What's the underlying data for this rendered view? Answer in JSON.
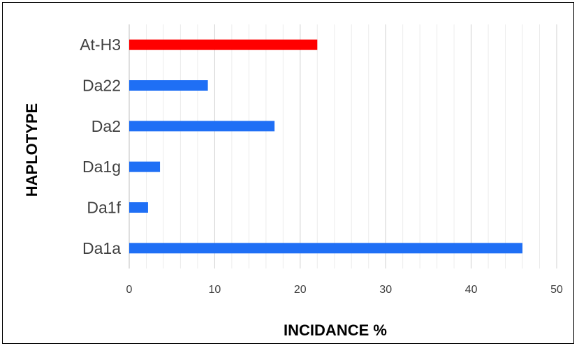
{
  "chart_data": {
    "type": "bar",
    "orientation": "horizontal",
    "categories": [
      "Da1a",
      "Da1f",
      "Da1g",
      "Da2",
      "Da22",
      "At-H3"
    ],
    "values": [
      46,
      2.2,
      3.6,
      17,
      9.2,
      22
    ],
    "colors": [
      "#1f6ff5",
      "#1f6ff5",
      "#1f6ff5",
      "#1f6ff5",
      "#1f6ff5",
      "#ff0000"
    ],
    "title": "",
    "xlabel": "INCIDANCE %",
    "ylabel": "HAPLOTYPE",
    "xlim": [
      0,
      50
    ],
    "x_ticks": [
      0,
      10,
      20,
      30,
      40,
      50
    ],
    "grid": "vertical major and minor gridlines",
    "legend": "none"
  }
}
